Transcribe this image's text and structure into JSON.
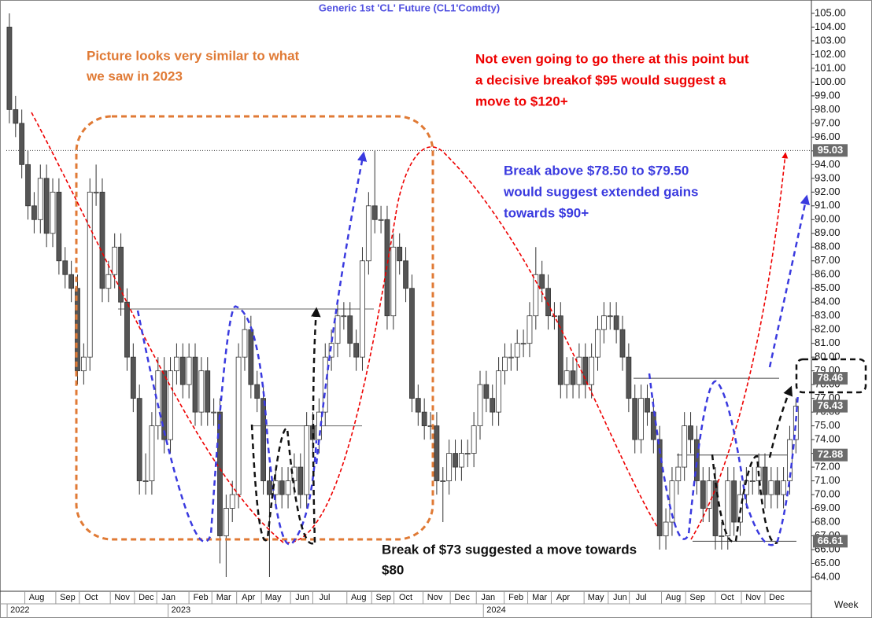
{
  "chart_data": {
    "type": "candlestick",
    "title": "Generic  1st  'CL'  Future  (CL1'Comdty)",
    "up_color": "#ffffff",
    "down_color": "#555555",
    "xlim": [
      -0.5,
      129.5
    ],
    "ylim": [
      62.97,
      105.97
    ],
    "yticks": [
      {
        "value": 64,
        "label": "64.00"
      },
      {
        "value": 65,
        "label": "65.00"
      },
      {
        "value": 66,
        "label": "66.00"
      },
      {
        "value": 67,
        "label": "67.00"
      },
      {
        "value": 68,
        "label": "68.00"
      },
      {
        "value": 69,
        "label": "69.00"
      },
      {
        "value": 70,
        "label": "70.00"
      },
      {
        "value": 71,
        "label": "71.00"
      },
      {
        "value": 72,
        "label": "72.00"
      },
      {
        "value": 73,
        "label": "73.00"
      },
      {
        "value": 74,
        "label": "74.00"
      },
      {
        "value": 75,
        "label": "75.00"
      },
      {
        "value": 76,
        "label": "76.00"
      },
      {
        "value": 77,
        "label": "77.00"
      },
      {
        "value": 78,
        "label": "78.00"
      },
      {
        "value": 79,
        "label": "79.00"
      },
      {
        "value": 80,
        "label": "80.00"
      },
      {
        "value": 81,
        "label": "81.00"
      },
      {
        "value": 82,
        "label": "82.00"
      },
      {
        "value": 83,
        "label": "83.00"
      },
      {
        "value": 84,
        "label": "84.00"
      },
      {
        "value": 85,
        "label": "85.00"
      },
      {
        "value": 86,
        "label": "86.00"
      },
      {
        "value": 87,
        "label": "87.00"
      },
      {
        "value": 88,
        "label": "88.00"
      },
      {
        "value": 89,
        "label": "89.00"
      },
      {
        "value": 90,
        "label": "90.00"
      },
      {
        "value": 91,
        "label": "91.00"
      },
      {
        "value": 92,
        "label": "92.00"
      },
      {
        "value": 93,
        "label": "93.00"
      },
      {
        "value": 94,
        "label": "94.00"
      },
      {
        "value": 95,
        "label": "95.00"
      },
      {
        "value": 96,
        "label": "96.00"
      },
      {
        "value": 97,
        "label": "97.00"
      },
      {
        "value": 98,
        "label": "98.00"
      },
      {
        "value": 99,
        "label": "99.00"
      },
      {
        "value": 100,
        "label": "100.00"
      },
      {
        "value": 101,
        "label": "101.00"
      },
      {
        "value": 102,
        "label": "102.00"
      },
      {
        "value": 103,
        "label": "103.00"
      },
      {
        "value": 104,
        "label": "104.00"
      },
      {
        "value": 105,
        "label": "105.00"
      }
    ],
    "xticks": [
      {
        "value": 4.4,
        "label": "Aug"
      },
      {
        "value": 9.4,
        "label": "Sep"
      },
      {
        "value": 13.2,
        "label": "Oct"
      },
      {
        "value": 18.2,
        "label": "Nov"
      },
      {
        "value": 22.1,
        "label": "Dec"
      },
      {
        "value": 25.7,
        "label": "Jan"
      },
      {
        "value": 30.9,
        "label": "Feb"
      },
      {
        "value": 34.6,
        "label": "Mar"
      },
      {
        "value": 38.6,
        "label": "Apr"
      },
      {
        "value": 42.6,
        "label": "May"
      },
      {
        "value": 47.3,
        "label": "Jun"
      },
      {
        "value": 50.9,
        "label": "Jul"
      },
      {
        "value": 56.4,
        "label": "Aug"
      },
      {
        "value": 60.4,
        "label": "Sep"
      },
      {
        "value": 64.0,
        "label": "Oct"
      },
      {
        "value": 68.7,
        "label": "Nov"
      },
      {
        "value": 73.1,
        "label": "Dec"
      },
      {
        "value": 77.3,
        "label": "Jan"
      },
      {
        "value": 81.8,
        "label": "Feb"
      },
      {
        "value": 85.6,
        "label": "Mar"
      },
      {
        "value": 89.4,
        "label": "Apr"
      },
      {
        "value": 94.7,
        "label": "May"
      },
      {
        "value": 98.6,
        "label": "Jun"
      },
      {
        "value": 102.0,
        "label": "Jul"
      },
      {
        "value": 107.2,
        "label": "Aug"
      },
      {
        "value": 111.1,
        "label": "Sep"
      },
      {
        "value": 115.9,
        "label": "Oct"
      },
      {
        "value": 120.1,
        "label": "Nov"
      },
      {
        "value": 123.9,
        "label": "Dec"
      }
    ],
    "year_ticks": [
      {
        "value": 0.4,
        "label": "2022"
      },
      {
        "value": 26.4,
        "label": "2023"
      },
      {
        "value": 77.3,
        "label": "2024"
      }
    ],
    "x_unit_label": "Week",
    "price_labels": [
      95.03,
      78.46,
      76.43,
      72.88,
      66.61
    ],
    "reference_lines": [
      83.5,
      75
    ],
    "annotations": [
      {
        "color": "#e07a35",
        "lines": [
          "Picture looks very similar to what",
          "we saw in 2023"
        ]
      },
      {
        "color": "#ee0000",
        "lines": [
          "Not even going to go there at this point but",
          "a decisive breakof $95 would suggest a",
          "move to $120+"
        ]
      },
      {
        "color": "#3a3adf",
        "lines": [
          "Break above $78.50 to $79.50",
          "would suggest extended gains",
          "towards $90+"
        ]
      },
      {
        "color": "#111111",
        "lines": [
          "Break of $73 suggested a  move towards",
          "$80"
        ]
      }
    ],
    "candles": [
      [
        104,
        105,
        97,
        98
      ],
      [
        98,
        99,
        96,
        97
      ],
      [
        97,
        98,
        93,
        94
      ],
      [
        94,
        95,
        90,
        91
      ],
      [
        91,
        92,
        89,
        90
      ],
      [
        90,
        94,
        89,
        93
      ],
      [
        93,
        94,
        88,
        89
      ],
      [
        89,
        93,
        88,
        92
      ],
      [
        92,
        93,
        86,
        87
      ],
      [
        87,
        88,
        85,
        86
      ],
      [
        86,
        87,
        84,
        85
      ],
      [
        85,
        86,
        78,
        79
      ],
      [
        79,
        81,
        78,
        80
      ],
      [
        80,
        93,
        79,
        92
      ],
      [
        92,
        94,
        91,
        92
      ],
      [
        92,
        93,
        84,
        85
      ],
      [
        85,
        87,
        84,
        86
      ],
      [
        86,
        89,
        85,
        88
      ],
      [
        88,
        89,
        83,
        84
      ],
      [
        84,
        85,
        79,
        80
      ],
      [
        80,
        81,
        76,
        77
      ],
      [
        77,
        78,
        70,
        71
      ],
      [
        71,
        73,
        70,
        71
      ],
      [
        71,
        76,
        70,
        75
      ],
      [
        75,
        80,
        74,
        79
      ],
      [
        79,
        80,
        73,
        74
      ],
      [
        74,
        80,
        73,
        79
      ],
      [
        79,
        81,
        78,
        80
      ],
      [
        80,
        81,
        77,
        78
      ],
      [
        78,
        81,
        77,
        80
      ],
      [
        80,
        81,
        75,
        76
      ],
      [
        76,
        80,
        75,
        79
      ],
      [
        79,
        80,
        75,
        76
      ],
      [
        76,
        77,
        75,
        76
      ],
      [
        76,
        77,
        65,
        67
      ],
      [
        67,
        70,
        64,
        69
      ],
      [
        69,
        71,
        68,
        70
      ],
      [
        70,
        81,
        69,
        80
      ],
      [
        80,
        83,
        79,
        82
      ],
      [
        82,
        83,
        77,
        78
      ],
      [
        78,
        79,
        76,
        77
      ],
      [
        77,
        78,
        70,
        71
      ],
      [
        71,
        72,
        64,
        70
      ],
      [
        70,
        72,
        69,
        71
      ],
      [
        71,
        72,
        69,
        70
      ],
      [
        70,
        72,
        69,
        71
      ],
      [
        71,
        73,
        70,
        72
      ],
      [
        72,
        73,
        69,
        70
      ],
      [
        70,
        76,
        69,
        75
      ],
      [
        75,
        76,
        73,
        74
      ],
      [
        74,
        77,
        73,
        76
      ],
      [
        76,
        81,
        75,
        80
      ],
      [
        80,
        82,
        79,
        81
      ],
      [
        81,
        84,
        80,
        83
      ],
      [
        83,
        84,
        82,
        83
      ],
      [
        83,
        84,
        80,
        81
      ],
      [
        81,
        82,
        79,
        80
      ],
      [
        80,
        88,
        79,
        87
      ],
      [
        87,
        92,
        86,
        91
      ],
      [
        91,
        95,
        89,
        90
      ],
      [
        90,
        91,
        89,
        90
      ],
      [
        90,
        91,
        82,
        83
      ],
      [
        83,
        89,
        82,
        88
      ],
      [
        88,
        89,
        86,
        87
      ],
      [
        87,
        88,
        84,
        85
      ],
      [
        85,
        86,
        76,
        77
      ],
      [
        77,
        78,
        75,
        76
      ],
      [
        76,
        77,
        74,
        75
      ],
      [
        75,
        76,
        74,
        75
      ],
      [
        75,
        76,
        70,
        71
      ],
      [
        71,
        72,
        68,
        71
      ],
      [
        71,
        74,
        70,
        73
      ],
      [
        73,
        74,
        71,
        72
      ],
      [
        72,
        74,
        71,
        73
      ],
      [
        73,
        74,
        72,
        73
      ],
      [
        73,
        76,
        72,
        75
      ],
      [
        75,
        79,
        74,
        78
      ],
      [
        78,
        79,
        76,
        77
      ],
      [
        77,
        78,
        75,
        76
      ],
      [
        76,
        80,
        75,
        79
      ],
      [
        79,
        81,
        78,
        80
      ],
      [
        80,
        81,
        79,
        80
      ],
      [
        80,
        82,
        79,
        81
      ],
      [
        81,
        82,
        80,
        81
      ],
      [
        81,
        84,
        80,
        83
      ],
      [
        83,
        88,
        82,
        86
      ],
      [
        86,
        87,
        84,
        85
      ],
      [
        85,
        86,
        82,
        83
      ],
      [
        83,
        84,
        82,
        83
      ],
      [
        83,
        84,
        77,
        78
      ],
      [
        78,
        80,
        77,
        79
      ],
      [
        79,
        80,
        77,
        78
      ],
      [
        78,
        81,
        77,
        80
      ],
      [
        80,
        81,
        77,
        78
      ],
      [
        78,
        81,
        77,
        80
      ],
      [
        80,
        83,
        79,
        82
      ],
      [
        82,
        84,
        81,
        83
      ],
      [
        83,
        84,
        82,
        83
      ],
      [
        83,
        84,
        81,
        82
      ],
      [
        82,
        83,
        79,
        80
      ],
      [
        80,
        81,
        76,
        77
      ],
      [
        77,
        78,
        73,
        74
      ],
      [
        74,
        78,
        73,
        77
      ],
      [
        77,
        78,
        75,
        76
      ],
      [
        76,
        77,
        73,
        74
      ],
      [
        74,
        75,
        66,
        67
      ],
      [
        67,
        69,
        66,
        68
      ],
      [
        68,
        72,
        67,
        71
      ],
      [
        71,
        73,
        70,
        72
      ],
      [
        72,
        76,
        71,
        75
      ],
      [
        75,
        76,
        73,
        74
      ],
      [
        74,
        75,
        70,
        71
      ],
      [
        71,
        72,
        68,
        69
      ],
      [
        69,
        72,
        68,
        71
      ],
      [
        71,
        72,
        66,
        67
      ],
      [
        67,
        68,
        66,
        67
      ],
      [
        67,
        72,
        66,
        71
      ],
      [
        71,
        72,
        67,
        68
      ],
      [
        68,
        71,
        67,
        70
      ],
      [
        70,
        72,
        69,
        71
      ],
      [
        71,
        72,
        70,
        71
      ],
      [
        71,
        73,
        70,
        72
      ],
      [
        72,
        73,
        69,
        70
      ],
      [
        70,
        72,
        69,
        71
      ],
      [
        71,
        72,
        69,
        70
      ],
      [
        70,
        72,
        69,
        71
      ],
      [
        71,
        75,
        70,
        74
      ],
      [
        74,
        77,
        73,
        76.43
      ]
    ]
  }
}
